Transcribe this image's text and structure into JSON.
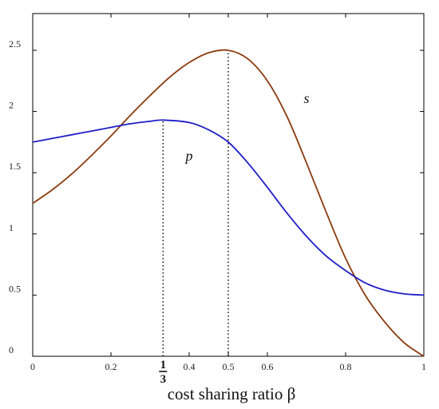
{
  "chart_data": {
    "type": "line",
    "title": "",
    "xlabel": "cost sharing ratio β",
    "ylabel": "",
    "xlim": [
      0,
      1
    ],
    "ylim": [
      0,
      2.8
    ],
    "grid": false,
    "x_ticks": [
      0,
      0.2,
      0.4,
      0.5,
      0.6,
      0.8,
      1
    ],
    "x_tick_labels": [
      "0",
      "0.2",
      "0.4",
      "0.5",
      "0.6",
      "0.8",
      "1"
    ],
    "y_ticks": [
      0,
      0.5,
      1,
      1.5,
      2,
      2.5
    ],
    "y_tick_labels": [
      "0",
      "0.5",
      "1",
      "1.5",
      "2",
      "2.5"
    ],
    "special_x_tick": {
      "value": 0.3333,
      "numerator": "1",
      "denominator": "3"
    },
    "series": [
      {
        "name": "s",
        "color": "#8B3A0F",
        "x": [
          0,
          0.05,
          0.1,
          0.15,
          0.2,
          0.25,
          0.3,
          0.35,
          0.4,
          0.45,
          0.5,
          0.55,
          0.6,
          0.65,
          0.7,
          0.75,
          0.8,
          0.85,
          0.9,
          0.95,
          1
        ],
        "y": [
          1.25,
          1.36,
          1.49,
          1.64,
          1.8,
          1.97,
          2.13,
          2.28,
          2.4,
          2.48,
          2.5,
          2.43,
          2.25,
          1.96,
          1.58,
          1.18,
          0.8,
          0.5,
          0.28,
          0.11,
          0
        ]
      },
      {
        "name": "p",
        "color": "#1F1FC8",
        "x": [
          0,
          0.05,
          0.1,
          0.15,
          0.2,
          0.25,
          0.3,
          0.3333,
          0.4,
          0.45,
          0.5,
          0.55,
          0.6,
          0.65,
          0.7,
          0.75,
          0.8,
          0.85,
          0.9,
          0.95,
          1
        ],
        "y": [
          1.75,
          1.78,
          1.81,
          1.84,
          1.87,
          1.9,
          1.92,
          1.93,
          1.91,
          1.85,
          1.75,
          1.58,
          1.38,
          1.17,
          0.98,
          0.82,
          0.7,
          0.6,
          0.54,
          0.51,
          0.5
        ]
      }
    ],
    "dotted_lines": [
      {
        "x": 0.3333,
        "y_from": 0,
        "y_to": 1.93
      },
      {
        "x": 0.5,
        "y_from": 0,
        "y_to": 2.5
      }
    ],
    "annotations": [
      {
        "text": "s",
        "x": 0.7,
        "y": 2.07
      },
      {
        "text": "p",
        "x": 0.4,
        "y": 1.6
      }
    ]
  }
}
